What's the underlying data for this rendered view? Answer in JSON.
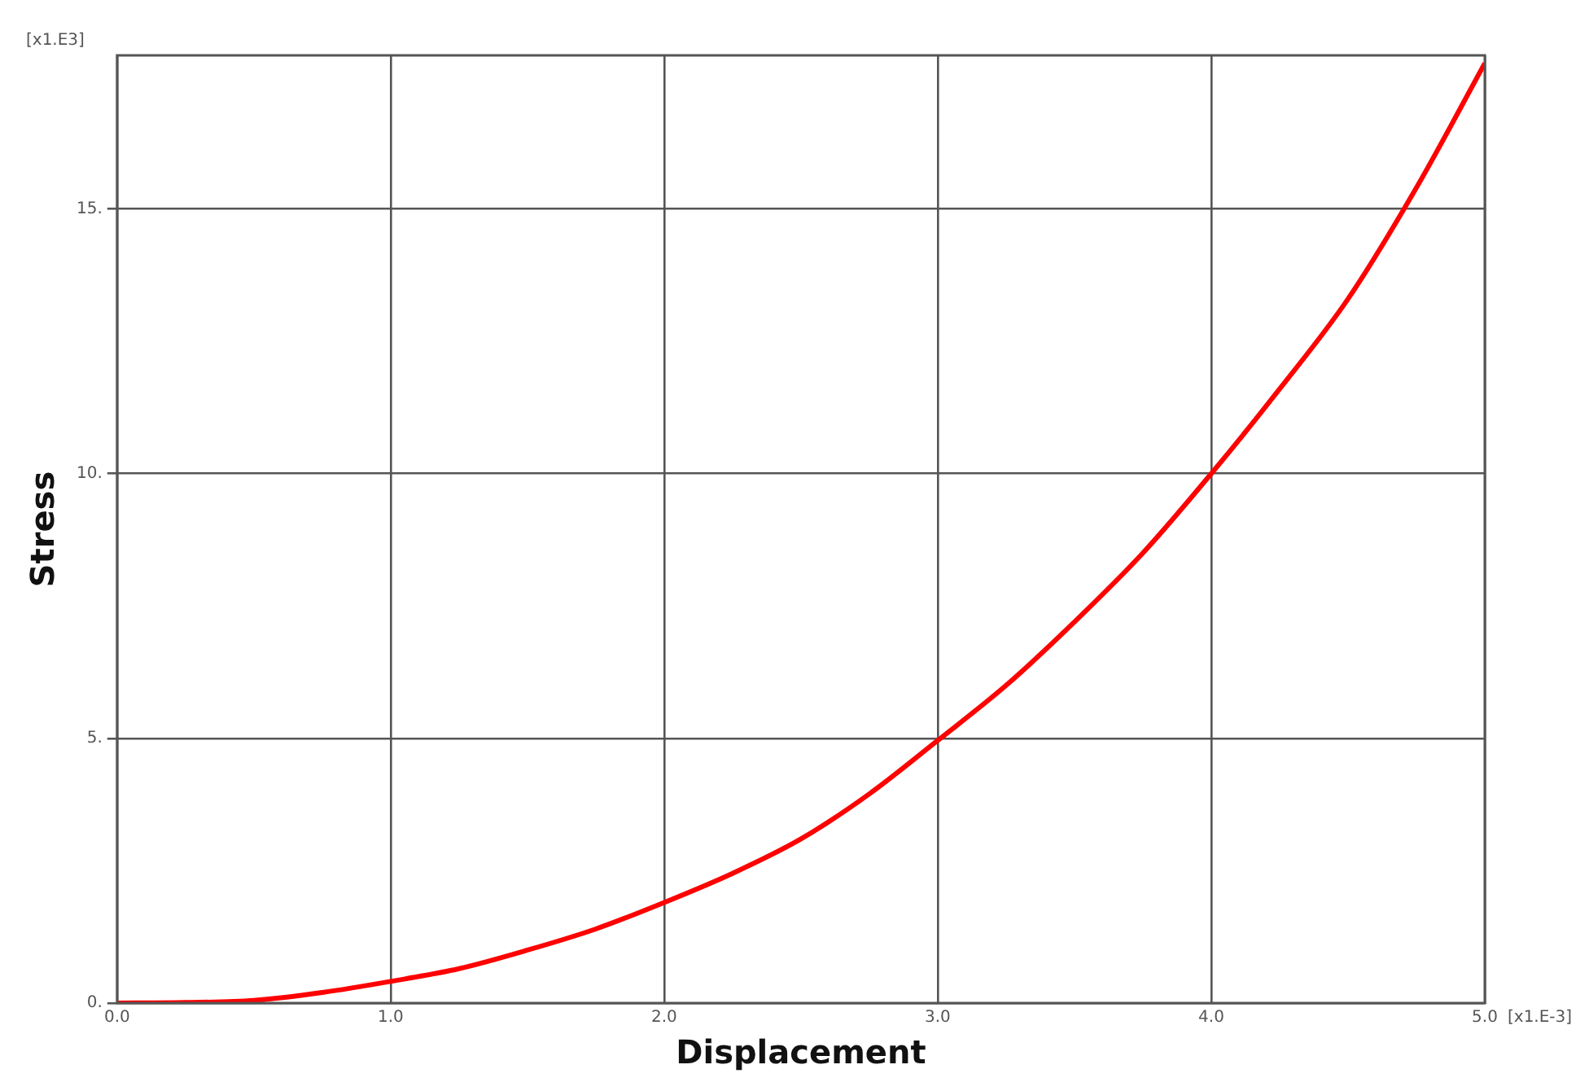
{
  "chart_data": {
    "type": "line",
    "xlabel": "Displacement",
    "ylabel": "Stress",
    "annotations": [
      "[x1.E3]",
      "[x1.E-3]"
    ],
    "x": [
      0,
      0.25,
      0.5,
      0.75,
      1.0,
      1.25,
      1.5,
      1.75,
      2.0,
      2.25,
      2.5,
      2.75,
      3.0,
      3.25,
      3.5,
      3.75,
      4.0,
      4.25,
      4.5,
      4.75,
      5.0
    ],
    "series": [
      {
        "color": "#ff0000",
        "values": [
          0,
          0.01,
          0.05,
          0.2,
          0.41,
          0.65,
          1.0,
          1.4,
          1.9,
          2.45,
          3.1,
          3.95,
          4.96,
          6.0,
          7.2,
          8.5,
          10.0,
          11.6,
          13.3,
          15.4,
          17.75
        ]
      }
    ],
    "xlim": [
      0,
      5
    ],
    "ylim": [
      0,
      17.9
    ],
    "xticks": [
      {
        "value": 0,
        "label": "0.0"
      },
      {
        "value": 1,
        "label": "1.0"
      },
      {
        "value": 2,
        "label": "2.0"
      },
      {
        "value": 3,
        "label": "3.0"
      },
      {
        "value": 4,
        "label": "4.0"
      },
      {
        "value": 5,
        "label": "5.0"
      }
    ],
    "yticks": [
      {
        "value": 0,
        "label": "0."
      },
      {
        "value": 5,
        "label": "5."
      },
      {
        "value": 10,
        "label": "10."
      },
      {
        "value": 15,
        "label": "15."
      }
    ],
    "grid": true,
    "legend": false,
    "marker": "none",
    "line_style": "solid"
  }
}
